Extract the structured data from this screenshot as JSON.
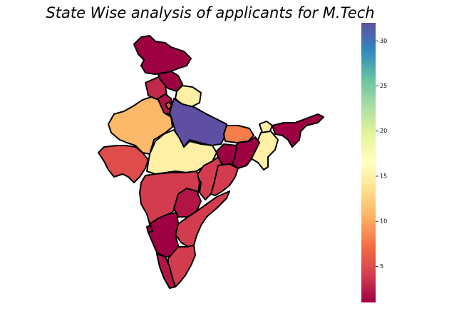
{
  "map": {
    "title": "State Wise analysis of applicants for M.Tech",
    "projection": "India state boundaries, no axes",
    "states": [
      {
        "region": "jammu-kashmir-ladakh",
        "value": 1
      },
      {
        "region": "himachal-pradesh",
        "value": 1
      },
      {
        "region": "punjab",
        "value": 3
      },
      {
        "region": "uttarakhand",
        "value": 15
      },
      {
        "region": "haryana",
        "value": 2
      },
      {
        "region": "delhi",
        "value": 6
      },
      {
        "region": "rajasthan",
        "value": 11
      },
      {
        "region": "uttar-pradesh",
        "value": 32
      },
      {
        "region": "gujarat",
        "value": 5
      },
      {
        "region": "madhya-pradesh",
        "value": 15
      },
      {
        "region": "bihar",
        "value": 8
      },
      {
        "region": "sikkim",
        "value": 15
      },
      {
        "region": "northeast",
        "value": 1
      },
      {
        "region": "meghalaya",
        "value": 15
      },
      {
        "region": "west-bengal",
        "value": 1
      },
      {
        "region": "jharkhand",
        "value": 1
      },
      {
        "region": "chhattisgarh",
        "value": 4
      },
      {
        "region": "odisha",
        "value": 4
      },
      {
        "region": "maharashtra",
        "value": 4
      },
      {
        "region": "telangana",
        "value": 2
      },
      {
        "region": "andhra-pradesh",
        "value": 4
      },
      {
        "region": "karnataka",
        "value": 1
      },
      {
        "region": "goa",
        "value": 1
      },
      {
        "region": "tamil-nadu",
        "value": 4
      },
      {
        "region": "kerala",
        "value": 2
      }
    ],
    "colorbar": {
      "colormap": "Spectral",
      "min": 1,
      "max": 32,
      "ticks": [
        5,
        10,
        15,
        20,
        25,
        30
      ],
      "tick_labels": [
        "5",
        "10",
        "15",
        "20",
        "25",
        "30"
      ]
    }
  }
}
